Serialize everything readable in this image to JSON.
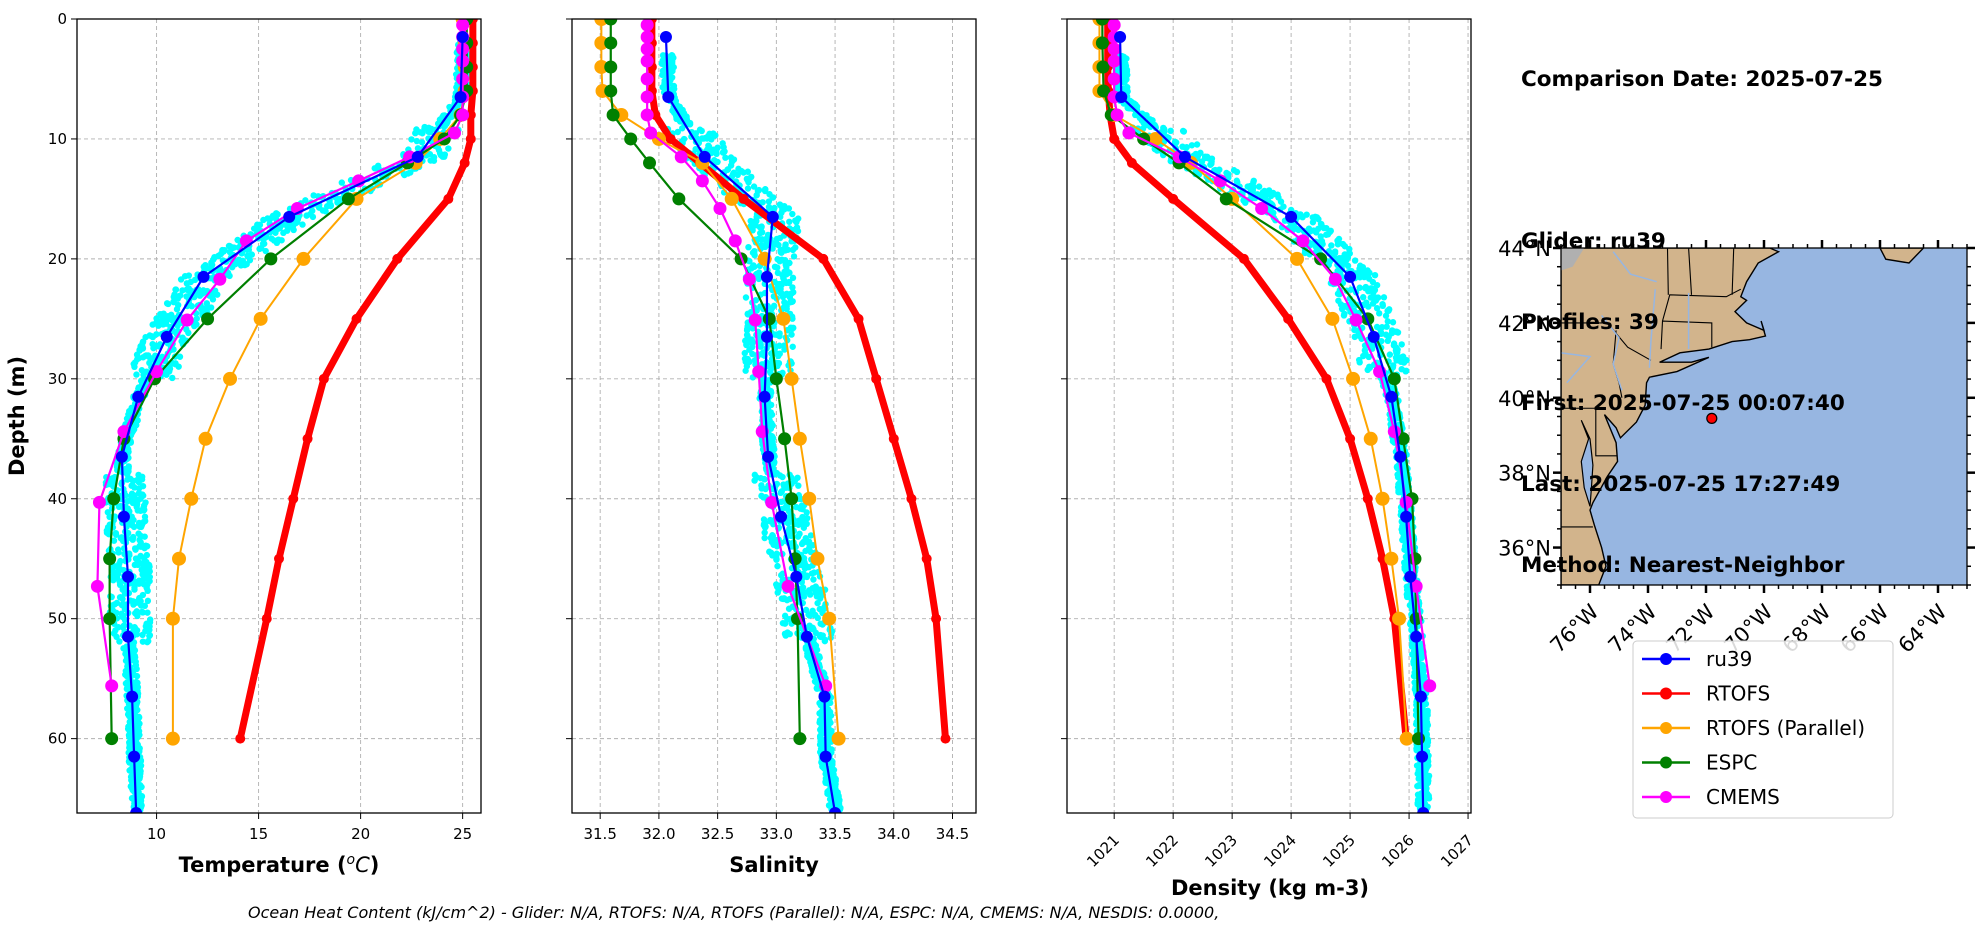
{
  "info": {
    "comparison_date": "Comparison Date: 2025-07-25",
    "glider": "Glider: ru39",
    "profiles": "Profiles: 39",
    "first": "First: 2025-07-25 00:07:40",
    "last": "Last: 2025-07-25 17:27:49",
    "method": "Method: Nearest-Neighbor"
  },
  "footer": "Ocean Heat Content (kJ/cm^2) - Glider: N/A,  RTOFS: N/A,  RTOFS (Parallel): N/A,  ESPC: N/A,  CMEMS: N/A,  NESDIS: 0.0000,",
  "colors": {
    "ru39": "#0000ff",
    "RTOFS": "#ff0000",
    "RTOFS (Parallel)": "#ffa500",
    "ESPC": "#008000",
    "CMEMS": "#ff00ff",
    "glider_scatter": "#00ffff",
    "land": "#d2b48c",
    "ocean": "#97b6e1",
    "lakes_rivers": "#97b6e1",
    "grid": "#b0b0b0"
  },
  "legend": [
    "ru39",
    "RTOFS",
    "RTOFS (Parallel)",
    "ESPC",
    "CMEMS"
  ],
  "chart_data": [
    {
      "type": "line",
      "title": "",
      "xlabel": "Temperature (°C)",
      "ylabel": "Depth (m)",
      "xlim": [
        6.1,
        25.9
      ],
      "ylim": [
        66.2,
        0
      ],
      "xticks": [
        10,
        15,
        20,
        25
      ],
      "yticks": [
        0,
        10,
        20,
        30,
        40,
        50,
        60
      ],
      "grid": true,
      "scatter": {
        "name": "glider profiles",
        "depth_range": [
          2,
          66
        ],
        "description": "cyan scatter of all glider observations, surface ~25 °C, thermocline 10–25 m, bottom ~7–9.5 °C"
      },
      "series": [
        {
          "name": "ru39",
          "depth": [
            1.5,
            6.5,
            11.5,
            16.5,
            21.5,
            26.5,
            31.5,
            36.5,
            41.5,
            46.5,
            51.5,
            56.5,
            61.5,
            66.2
          ],
          "values": [
            25.0,
            24.9,
            22.8,
            16.5,
            12.3,
            10.5,
            9.1,
            8.3,
            8.4,
            8.6,
            8.6,
            8.8,
            8.9,
            9.0
          ]
        },
        {
          "name": "RTOFS",
          "depth": [
            0,
            2,
            4,
            6,
            8,
            10,
            12,
            15,
            20,
            25,
            30,
            35,
            40,
            45,
            50,
            60
          ],
          "values": [
            25.5,
            25.5,
            25.5,
            25.5,
            25.4,
            25.4,
            25.1,
            24.3,
            21.8,
            19.8,
            18.2,
            17.4,
            16.7,
            16.0,
            15.4,
            14.1
          ]
        },
        {
          "name": "RTOFS (Parallel)",
          "depth": [
            0,
            2,
            4,
            6,
            8,
            10,
            12,
            15,
            20,
            25,
            30,
            35,
            40,
            45,
            50,
            60
          ],
          "values": [
            25.0,
            25.1,
            25.1,
            25.1,
            24.9,
            23.9,
            22.7,
            19.8,
            17.2,
            15.1,
            13.6,
            12.4,
            11.7,
            11.1,
            10.8,
            10.8
          ]
        },
        {
          "name": "ESPC",
          "depth": [
            0,
            2,
            4,
            6,
            8,
            10,
            12,
            15,
            20,
            25,
            30,
            35,
            40,
            45,
            50,
            60
          ],
          "values": [
            25.2,
            25.2,
            25.2,
            25.2,
            24.9,
            24.1,
            22.3,
            19.4,
            15.6,
            12.5,
            9.9,
            8.4,
            7.9,
            7.7,
            7.7,
            7.8
          ]
        },
        {
          "name": "CMEMS",
          "depth": [
            0.5,
            1.5,
            2.5,
            3.5,
            5,
            6.5,
            8,
            9.5,
            11.5,
            13.5,
            15.8,
            18.5,
            21.7,
            25.1,
            29.4,
            34.4,
            40.3,
            47.3,
            55.6
          ],
          "values": [
            25.0,
            25.0,
            25.0,
            25.0,
            25.0,
            25.0,
            25.0,
            24.6,
            22.4,
            19.9,
            16.9,
            14.4,
            13.1,
            11.5,
            10.0,
            8.4,
            7.2,
            7.1,
            7.8
          ]
        }
      ]
    },
    {
      "type": "line",
      "title": "",
      "xlabel": "Salinity",
      "ylabel": "",
      "xlim": [
        31.26,
        34.7
      ],
      "ylim": [
        66.2,
        0
      ],
      "xticks": [
        31.5,
        32.0,
        32.5,
        33.0,
        33.5,
        34.0,
        34.5
      ],
      "yticks": [
        0,
        10,
        20,
        30,
        40,
        50,
        60
      ],
      "grid": true,
      "scatter": {
        "name": "glider profiles",
        "depth_range": [
          3,
          66
        ],
        "description": "cyan scatter, surface ~31.8–32.2, thermocline spreads to 33.3–33.9, bottom ~33.4–33.6"
      },
      "series": [
        {
          "name": "ru39",
          "depth": [
            1.5,
            6.5,
            11.5,
            16.5,
            21.5,
            26.5,
            31.5,
            36.5,
            41.5,
            46.5,
            51.5,
            56.5,
            61.5,
            66.2
          ],
          "values": [
            32.06,
            32.08,
            32.39,
            32.97,
            32.92,
            32.92,
            32.9,
            32.93,
            33.04,
            33.17,
            33.26,
            33.41,
            33.42,
            33.5
          ]
        },
        {
          "name": "RTOFS",
          "depth": [
            0,
            2,
            4,
            6,
            8,
            10,
            12,
            15,
            20,
            25,
            30,
            35,
            40,
            45,
            50,
            60
          ],
          "values": [
            31.94,
            31.94,
            31.94,
            31.94,
            31.97,
            32.1,
            32.35,
            32.72,
            33.4,
            33.7,
            33.85,
            34.0,
            34.15,
            34.28,
            34.36,
            34.44
          ]
        },
        {
          "name": "RTOFS (Parallel)",
          "depth": [
            0,
            2,
            4,
            6,
            8,
            10,
            12,
            15,
            20,
            25,
            30,
            35,
            40,
            45,
            50,
            60
          ],
          "values": [
            31.51,
            31.51,
            31.51,
            31.52,
            31.68,
            32.0,
            32.37,
            32.62,
            32.9,
            33.06,
            33.13,
            33.2,
            33.28,
            33.35,
            33.45,
            33.53
          ]
        },
        {
          "name": "ESPC",
          "depth": [
            0,
            2,
            4,
            6,
            8,
            10,
            12,
            15,
            20,
            25,
            30,
            35,
            40,
            45,
            50,
            60
          ],
          "values": [
            31.59,
            31.59,
            31.59,
            31.59,
            31.61,
            31.76,
            31.92,
            32.17,
            32.7,
            32.94,
            33.0,
            33.07,
            33.13,
            33.16,
            33.18,
            33.2
          ]
        },
        {
          "name": "CMEMS",
          "depth": [
            0.5,
            1.5,
            2.5,
            3.5,
            5,
            6.5,
            8,
            9.5,
            11.5,
            13.5,
            15.8,
            18.5,
            21.7,
            25.1,
            29.4,
            34.4,
            40.3,
            47.3,
            55.6
          ],
          "values": [
            31.9,
            31.9,
            31.9,
            31.9,
            31.9,
            31.9,
            31.9,
            31.93,
            32.19,
            32.37,
            32.52,
            32.65,
            32.77,
            32.82,
            32.85,
            32.88,
            32.96,
            33.1,
            33.42
          ]
        }
      ]
    },
    {
      "type": "line",
      "title": "",
      "xlabel": "Density (kg m-3)",
      "ylabel": "",
      "xlim": [
        1020.2,
        1027.05
      ],
      "ylim": [
        66.2,
        0
      ],
      "xticks": [
        1021,
        1022,
        1023,
        1024,
        1025,
        1026,
        1027
      ],
      "yticks": [
        0,
        10,
        20,
        30,
        40,
        50,
        60
      ],
      "grid": true,
      "scatter": {
        "name": "glider profiles",
        "depth_range": [
          3,
          66
        ],
        "description": "cyan scatter, surface ~1021.1, pycnocline 10–30 m, bottom ~1026.1–1026.3"
      },
      "series": [
        {
          "name": "ru39",
          "depth": [
            1.5,
            6.5,
            11.5,
            16.5,
            21.5,
            26.5,
            31.5,
            36.5,
            41.5,
            46.5,
            51.5,
            56.5,
            61.5,
            66.2
          ],
          "values": [
            1021.1,
            1021.12,
            1022.2,
            1024.0,
            1025.0,
            1025.4,
            1025.7,
            1025.85,
            1025.95,
            1026.02,
            1026.12,
            1026.2,
            1026.22,
            1026.24
          ]
        },
        {
          "name": "RTOFS",
          "depth": [
            0,
            2,
            4,
            6,
            8,
            10,
            12,
            15,
            20,
            25,
            30,
            35,
            40,
            45,
            50,
            60
          ],
          "values": [
            1020.89,
            1020.89,
            1020.89,
            1020.9,
            1020.93,
            1021.0,
            1021.3,
            1022.0,
            1023.2,
            1023.95,
            1024.6,
            1025.0,
            1025.3,
            1025.55,
            1025.75,
            1025.95
          ]
        },
        {
          "name": "RTOFS (Parallel)",
          "depth": [
            0,
            2,
            4,
            6,
            8,
            10,
            12,
            15,
            20,
            25,
            30,
            35,
            40,
            45,
            50,
            60
          ],
          "values": [
            1020.75,
            1020.75,
            1020.75,
            1020.75,
            1021.0,
            1021.7,
            1022.3,
            1023.0,
            1024.1,
            1024.7,
            1025.05,
            1025.35,
            1025.55,
            1025.7,
            1025.83,
            1025.96
          ]
        },
        {
          "name": "ESPC",
          "depth": [
            0,
            2,
            4,
            6,
            8,
            10,
            12,
            15,
            20,
            25,
            30,
            35,
            40,
            45,
            50,
            60
          ],
          "values": [
            1020.8,
            1020.8,
            1020.81,
            1020.82,
            1020.95,
            1021.5,
            1022.1,
            1022.9,
            1024.5,
            1025.3,
            1025.75,
            1025.9,
            1026.05,
            1026.1,
            1026.12,
            1026.16
          ]
        },
        {
          "name": "CMEMS",
          "depth": [
            0.5,
            1.5,
            2.5,
            3.5,
            5,
            6.5,
            8,
            9.5,
            11.5,
            13.5,
            15.8,
            18.5,
            21.7,
            25.1,
            29.4,
            34.4,
            40.3,
            47.3,
            55.6
          ],
          "values": [
            1021.0,
            1021.0,
            1021.0,
            1021.0,
            1021.0,
            1021.0,
            1021.05,
            1021.25,
            1022.1,
            1022.8,
            1023.5,
            1024.2,
            1024.75,
            1025.1,
            1025.5,
            1025.75,
            1025.95,
            1026.12,
            1026.35
          ]
        }
      ]
    }
  ],
  "map": {
    "lon_range": [
      -77,
      -63
    ],
    "lat_range": [
      35,
      44
    ],
    "lat_ticks": [
      "44°N",
      "42°N",
      "40°N",
      "38°N",
      "36°N"
    ],
    "lat_tick_values": [
      44,
      42,
      40,
      38,
      36
    ],
    "lon_ticks": [
      "76°W",
      "74°W",
      "72°W",
      "70°W",
      "68°W",
      "66°W",
      "64°W"
    ],
    "lon_tick_values": [
      -76,
      -74,
      -72,
      -70,
      -68,
      -66,
      -64
    ],
    "glider_position": {
      "lon": -71.8,
      "lat": 39.45
    }
  }
}
